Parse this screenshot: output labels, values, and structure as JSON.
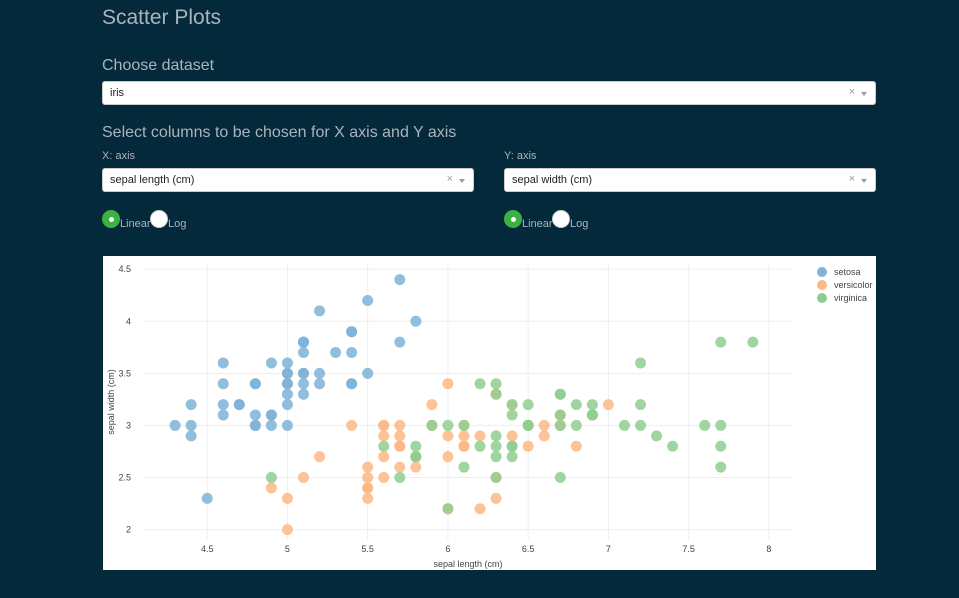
{
  "page": {
    "title": "Scatter Plots",
    "dataset_heading": "Choose dataset",
    "columns_heading": "Select columns to be chosen for X axis and Y axis"
  },
  "dataset_select": {
    "value": "iris",
    "clear": "×"
  },
  "x_axis": {
    "label": "X: axis",
    "value": "sepal length (cm)",
    "clear": "×",
    "scale_options": [
      {
        "label": "Linear",
        "selected": true
      },
      {
        "label": "Log",
        "selected": false
      }
    ]
  },
  "y_axis": {
    "label": "Y: axis",
    "value": "sepal width (cm)",
    "clear": "×",
    "scale_options": [
      {
        "label": "Linear",
        "selected": true
      },
      {
        "label": "Log",
        "selected": false
      }
    ]
  },
  "colors": {
    "setosa": "#7fb3d8",
    "versicolor": "#fdb884",
    "virginica": "#8fce8f",
    "background": "#04293a",
    "accent": "#3cb043"
  },
  "chart_data": {
    "type": "scatter",
    "xlabel": "sepal length (cm)",
    "ylabel": "sepal width (cm)",
    "xlim": [
      4.1,
      8.15
    ],
    "ylim": [
      1.9,
      4.55
    ],
    "xticks": [
      4.5,
      5,
      5.5,
      6,
      6.5,
      7,
      7.5,
      8
    ],
    "xtick_labels": [
      "4.5",
      "5",
      "5.5",
      "6",
      "6.5",
      "7",
      "7.5",
      "8"
    ],
    "yticks": [
      2,
      2.5,
      3,
      3.5,
      4,
      4.5
    ],
    "ytick_labels": [
      "2",
      "2.5",
      "3",
      "3.5",
      "4",
      "4.5"
    ],
    "grid": true,
    "legend_position": "top-right",
    "series": [
      {
        "name": "setosa",
        "color": "#7fb3d8",
        "x": [
          5.1,
          4.9,
          4.7,
          4.6,
          5.0,
          5.4,
          4.6,
          5.0,
          4.4,
          4.9,
          5.4,
          4.8,
          4.8,
          4.3,
          5.8,
          5.7,
          5.4,
          5.1,
          5.7,
          5.1,
          5.4,
          5.1,
          4.6,
          5.1,
          4.8,
          5.0,
          5.0,
          5.2,
          5.2,
          4.7,
          4.8,
          5.4,
          5.2,
          5.5,
          4.9,
          5.0,
          5.5,
          4.9,
          4.4,
          5.1,
          5.0,
          4.5,
          4.4,
          5.0,
          5.1,
          4.8,
          5.1,
          4.6,
          5.3,
          5.0
        ],
        "y": [
          3.5,
          3.0,
          3.2,
          3.1,
          3.6,
          3.9,
          3.4,
          3.4,
          2.9,
          3.1,
          3.7,
          3.4,
          3.0,
          3.0,
          4.0,
          4.4,
          3.9,
          3.5,
          3.8,
          3.8,
          3.4,
          3.7,
          3.6,
          3.3,
          3.4,
          3.0,
          3.4,
          3.5,
          3.4,
          3.2,
          3.1,
          3.4,
          4.1,
          4.2,
          3.1,
          3.2,
          3.5,
          3.6,
          3.0,
          3.4,
          3.5,
          2.3,
          3.2,
          3.5,
          3.8,
          3.0,
          3.8,
          3.2,
          3.7,
          3.3
        ]
      },
      {
        "name": "versicolor",
        "color": "#fdb884",
        "x": [
          7.0,
          6.4,
          6.9,
          5.5,
          6.5,
          5.7,
          6.3,
          4.9,
          6.6,
          5.2,
          5.0,
          5.9,
          6.0,
          6.1,
          5.6,
          6.7,
          5.6,
          5.8,
          6.2,
          5.6,
          5.9,
          6.1,
          6.3,
          6.1,
          6.4,
          6.6,
          6.8,
          6.7,
          6.0,
          5.7,
          5.5,
          5.5,
          5.8,
          6.0,
          5.4,
          6.0,
          6.7,
          6.3,
          5.6,
          5.5,
          5.5,
          6.1,
          5.8,
          5.0,
          5.6,
          5.7,
          5.7,
          6.2,
          5.1,
          5.7
        ],
        "y": [
          3.2,
          3.2,
          3.1,
          2.3,
          2.8,
          2.8,
          3.3,
          2.4,
          2.9,
          2.7,
          2.0,
          3.0,
          2.2,
          2.9,
          2.9,
          3.1,
          3.0,
          2.7,
          2.2,
          2.5,
          3.2,
          2.8,
          2.5,
          2.8,
          2.9,
          3.0,
          2.8,
          3.0,
          2.9,
          2.6,
          2.4,
          2.4,
          2.7,
          2.7,
          3.0,
          3.4,
          3.1,
          2.3,
          3.0,
          2.5,
          2.6,
          3.0,
          2.6,
          2.3,
          2.7,
          3.0,
          2.9,
          2.9,
          2.5,
          2.8
        ]
      },
      {
        "name": "virginica",
        "color": "#8fce8f",
        "x": [
          6.3,
          5.8,
          7.1,
          6.3,
          6.5,
          7.6,
          4.9,
          7.3,
          6.7,
          7.2,
          6.5,
          6.4,
          6.8,
          5.7,
          5.8,
          6.4,
          6.5,
          7.7,
          7.7,
          6.0,
          6.9,
          5.6,
          7.7,
          6.3,
          6.7,
          7.2,
          6.2,
          6.1,
          6.4,
          7.2,
          7.4,
          7.9,
          6.4,
          6.3,
          6.1,
          7.7,
          6.3,
          6.4,
          6.0,
          6.9,
          6.7,
          6.9,
          5.8,
          6.8,
          6.7,
          6.7,
          6.3,
          6.5,
          6.2,
          5.9
        ],
        "y": [
          3.3,
          2.7,
          3.0,
          2.9,
          3.0,
          3.0,
          2.5,
          2.9,
          2.5,
          3.6,
          3.2,
          2.7,
          3.0,
          2.5,
          2.8,
          3.2,
          3.0,
          3.8,
          2.6,
          2.2,
          3.2,
          2.8,
          2.8,
          2.7,
          3.3,
          3.2,
          2.8,
          3.0,
          2.8,
          3.0,
          2.8,
          3.8,
          2.8,
          2.8,
          2.6,
          3.0,
          3.4,
          3.1,
          3.0,
          3.1,
          3.1,
          3.1,
          2.7,
          3.2,
          3.3,
          3.0,
          2.5,
          3.0,
          3.4,
          3.0
        ]
      }
    ]
  }
}
